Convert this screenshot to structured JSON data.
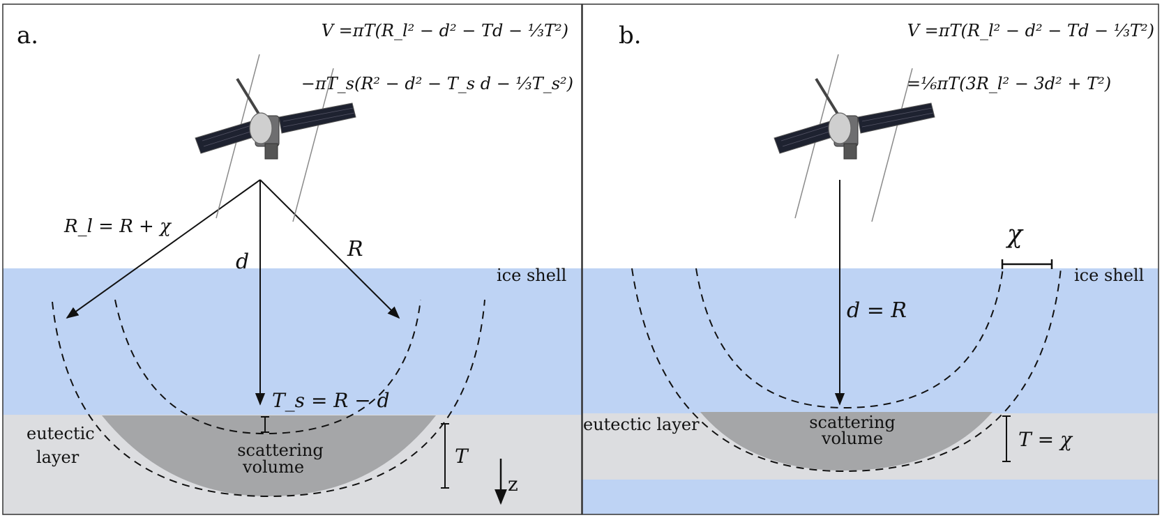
{
  "panel_a": {
    "label": "a.",
    "eq_line1": "V =πT(R_l² − d² − Td − ⅓T²)",
    "eq_line2": "−πT_s(R² − d² − T_s d − ⅓T_s²)",
    "rl_label": "R_l = R + χ",
    "d_label": "d",
    "r_label": "R",
    "ice_label": "ice shell",
    "ts_label": "T_s = R − d",
    "eutectic_label_1": "eutectic",
    "eutectic_label_2": "layer",
    "scatter_label_1": "scattering",
    "scatter_label_2": "volume",
    "t_label": "T",
    "z_label": "z"
  },
  "panel_b": {
    "label": "b.",
    "eq_line1": "V =πT(R_l² − d² − Td − ⅓T²)",
    "eq_line2": "=⅙πT(3R_l² − 3d² + T²)",
    "chi_label": "χ",
    "d_label": "d = R",
    "ice_label": "ice shell",
    "eutectic_label": "eutectic layer",
    "scatter_label_1": "scattering",
    "scatter_label_2": "volume",
    "t_label": "T = χ"
  },
  "colors": {
    "ice": "#bed3f4",
    "eutectic": "#dcdde0",
    "scatter": "#a5a6a8",
    "line": "#111111"
  }
}
